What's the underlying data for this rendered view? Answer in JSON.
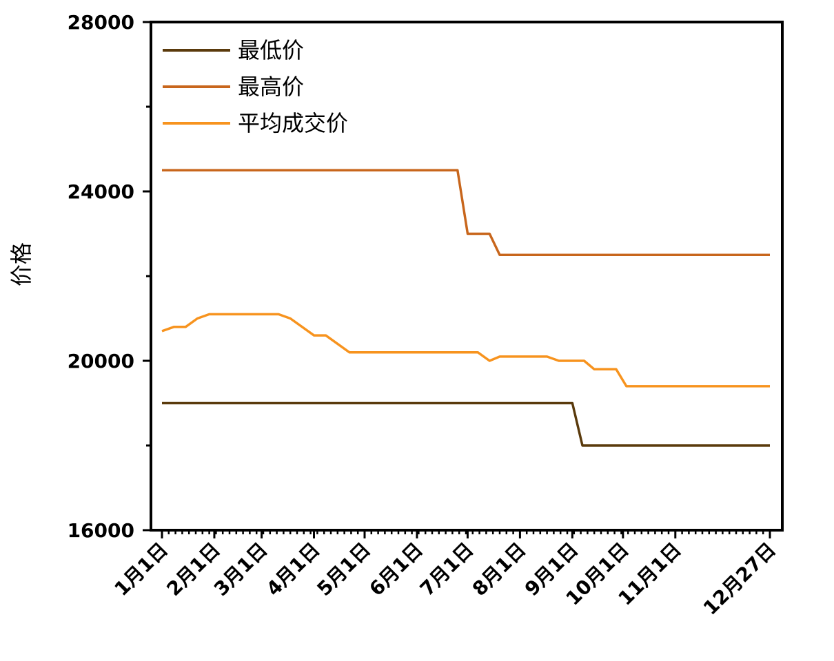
{
  "chart_data": {
    "type": "line",
    "ylabel": "价格",
    "xlabel": "",
    "ylim": [
      16000,
      28000
    ],
    "yticks": [
      16000,
      20000,
      24000,
      28000
    ],
    "y_tick_labels": [
      "16000",
      "20000",
      "24000",
      "28000"
    ],
    "x_tick_labels": [
      "1月1日",
      "2月1日",
      "3月1日",
      "4月1日",
      "5月1日",
      "6月1日",
      "7月1日",
      "8月1日",
      "9月1日",
      "10月1日",
      "11月1日",
      "12月27日"
    ],
    "x_tick_days": [
      1,
      32,
      60,
      91,
      121,
      152,
      182,
      213,
      244,
      274,
      305,
      361
    ],
    "legend_position": "top-left",
    "grid": false,
    "series": [
      {
        "name": "最低价",
        "color": "#5a3a0c",
        "points": [
          [
            1,
            19000
          ],
          [
            244,
            19000
          ],
          [
            250,
            18000
          ],
          [
            361,
            18000
          ]
        ]
      },
      {
        "name": "最高价",
        "color": "#c8661c",
        "points": [
          [
            1,
            24500
          ],
          [
            176,
            24500
          ],
          [
            182,
            23000
          ],
          [
            195,
            23000
          ],
          [
            201,
            22500
          ],
          [
            361,
            22500
          ]
        ]
      },
      {
        "name": "平均成交价",
        "color": "#f7931e",
        "points": [
          [
            1,
            20700
          ],
          [
            8,
            20800
          ],
          [
            15,
            20800
          ],
          [
            22,
            21000
          ],
          [
            29,
            21100
          ],
          [
            70,
            21100
          ],
          [
            77,
            21000
          ],
          [
            91,
            20600
          ],
          [
            98,
            20600
          ],
          [
            112,
            20200
          ],
          [
            188,
            20200
          ],
          [
            195,
            20000
          ],
          [
            201,
            20100
          ],
          [
            229,
            20100
          ],
          [
            236,
            20000
          ],
          [
            251,
            20000
          ],
          [
            257,
            19800
          ],
          [
            270,
            19800
          ],
          [
            276,
            19400
          ],
          [
            361,
            19400
          ]
        ]
      }
    ]
  }
}
